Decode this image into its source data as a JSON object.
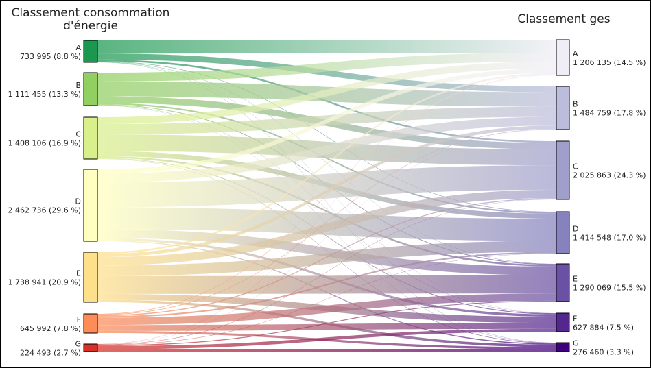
{
  "left_title_lines": [
    "Classement consommation",
    "d'énergie"
  ],
  "right_title": "Classement ges",
  "left_nodes": [
    {
      "id": "A",
      "value": 733995,
      "value_text": "733 995 (8.8 %)",
      "color": "#1a9850"
    },
    {
      "id": "B",
      "value": 1111455,
      "value_text": "1 111 455 (13.3 %)",
      "color": "#91cf60"
    },
    {
      "id": "C",
      "value": 1408106,
      "value_text": "1 408 106 (16.9 %)",
      "color": "#d9ef8b"
    },
    {
      "id": "D",
      "value": 2462736,
      "value_text": "2 462 736 (29.6 %)",
      "color": "#ffffbf"
    },
    {
      "id": "E",
      "value": 1738941,
      "value_text": "1 738 941 (20.9 %)",
      "color": "#fee08b"
    },
    {
      "id": "F",
      "value": 645992,
      "value_text": "645 992 (7.8 %)",
      "color": "#fc8d59"
    },
    {
      "id": "G",
      "value": 224493,
      "value_text": "224 493 (2.7 %)",
      "color": "#d73027"
    }
  ],
  "right_nodes": [
    {
      "id": "A",
      "value": 1206135,
      "value_text": "1 206 135 (14.5 %)",
      "color": "#efedf5"
    },
    {
      "id": "B",
      "value": 1484759,
      "value_text": "1 484 759 (17.8 %)",
      "color": "#bcbddc"
    },
    {
      "id": "C",
      "value": 2025863,
      "value_text": "2 025 863 (24.3 %)",
      "color": "#a09fcc"
    },
    {
      "id": "D",
      "value": 1414548,
      "value_text": "1 414 548 (17.0 %)",
      "color": "#8582bd"
    },
    {
      "id": "E",
      "value": 1290069,
      "value_text": "1 290 069 (15.5 %)",
      "color": "#6a51a3"
    },
    {
      "id": "F",
      "value": 627884,
      "value_text": "627 884 (7.5 %)",
      "color": "#54278f"
    },
    {
      "id": "G",
      "value": 276460,
      "value_text": "276 460 (3.3 %)",
      "color": "#3f007d"
    }
  ],
  "links": [
    {
      "source": "A",
      "target": "A",
      "value": 440000
    },
    {
      "source": "A",
      "target": "B",
      "value": 200000
    },
    {
      "source": "A",
      "target": "C",
      "value": 60000
    },
    {
      "source": "A",
      "target": "D",
      "value": 15000
    },
    {
      "source": "A",
      "target": "E",
      "value": 8000
    },
    {
      "source": "A",
      "target": "F",
      "value": 5000
    },
    {
      "source": "A",
      "target": "G",
      "value": 5995
    },
    {
      "source": "B",
      "target": "A",
      "value": 300000
    },
    {
      "source": "B",
      "target": "B",
      "value": 500000
    },
    {
      "source": "B",
      "target": "C",
      "value": 220000
    },
    {
      "source": "B",
      "target": "D",
      "value": 50000
    },
    {
      "source": "B",
      "target": "E",
      "value": 25000
    },
    {
      "source": "B",
      "target": "F",
      "value": 10000
    },
    {
      "source": "B",
      "target": "G",
      "value": 6455
    },
    {
      "source": "C",
      "target": "A",
      "value": 230000
    },
    {
      "source": "C",
      "target": "B",
      "value": 350000
    },
    {
      "source": "C",
      "target": "C",
      "value": 560000
    },
    {
      "source": "C",
      "target": "D",
      "value": 170000
    },
    {
      "source": "C",
      "target": "E",
      "value": 60000
    },
    {
      "source": "C",
      "target": "F",
      "value": 25000
    },
    {
      "source": "C",
      "target": "G",
      "value": 13106
    },
    {
      "source": "D",
      "target": "A",
      "value": 150000
    },
    {
      "source": "D",
      "target": "B",
      "value": 300000
    },
    {
      "source": "D",
      "target": "C",
      "value": 850000
    },
    {
      "source": "D",
      "target": "D",
      "value": 750000
    },
    {
      "source": "D",
      "target": "E",
      "value": 300000
    },
    {
      "source": "D",
      "target": "F",
      "value": 80000
    },
    {
      "source": "D",
      "target": "G",
      "value": 32736
    },
    {
      "source": "E",
      "target": "A",
      "value": 60000
    },
    {
      "source": "E",
      "target": "B",
      "value": 110000
    },
    {
      "source": "E",
      "target": "C",
      "value": 290000
    },
    {
      "source": "E",
      "target": "D",
      "value": 370000
    },
    {
      "source": "E",
      "target": "E",
      "value": 620000
    },
    {
      "source": "E",
      "target": "F",
      "value": 210000
    },
    {
      "source": "E",
      "target": "G",
      "value": 78941
    },
    {
      "source": "F",
      "target": "A",
      "value": 20000
    },
    {
      "source": "F",
      "target": "B",
      "value": 20000
    },
    {
      "source": "F",
      "target": "C",
      "value": 35000
    },
    {
      "source": "F",
      "target": "D",
      "value": 50000
    },
    {
      "source": "F",
      "target": "E",
      "value": 250000
    },
    {
      "source": "F",
      "target": "F",
      "value": 200000
    },
    {
      "source": "F",
      "target": "G",
      "value": 70992
    },
    {
      "source": "G",
      "target": "A",
      "value": 6135
    },
    {
      "source": "G",
      "target": "B",
      "value": 4759
    },
    {
      "source": "G",
      "target": "C",
      "value": 10863
    },
    {
      "source": "G",
      "target": "D",
      "value": 9548
    },
    {
      "source": "G",
      "target": "E",
      "value": 27069
    },
    {
      "source": "G",
      "target": "F",
      "value": 97884
    },
    {
      "source": "G",
      "target": "G",
      "value": 68235
    }
  ]
}
